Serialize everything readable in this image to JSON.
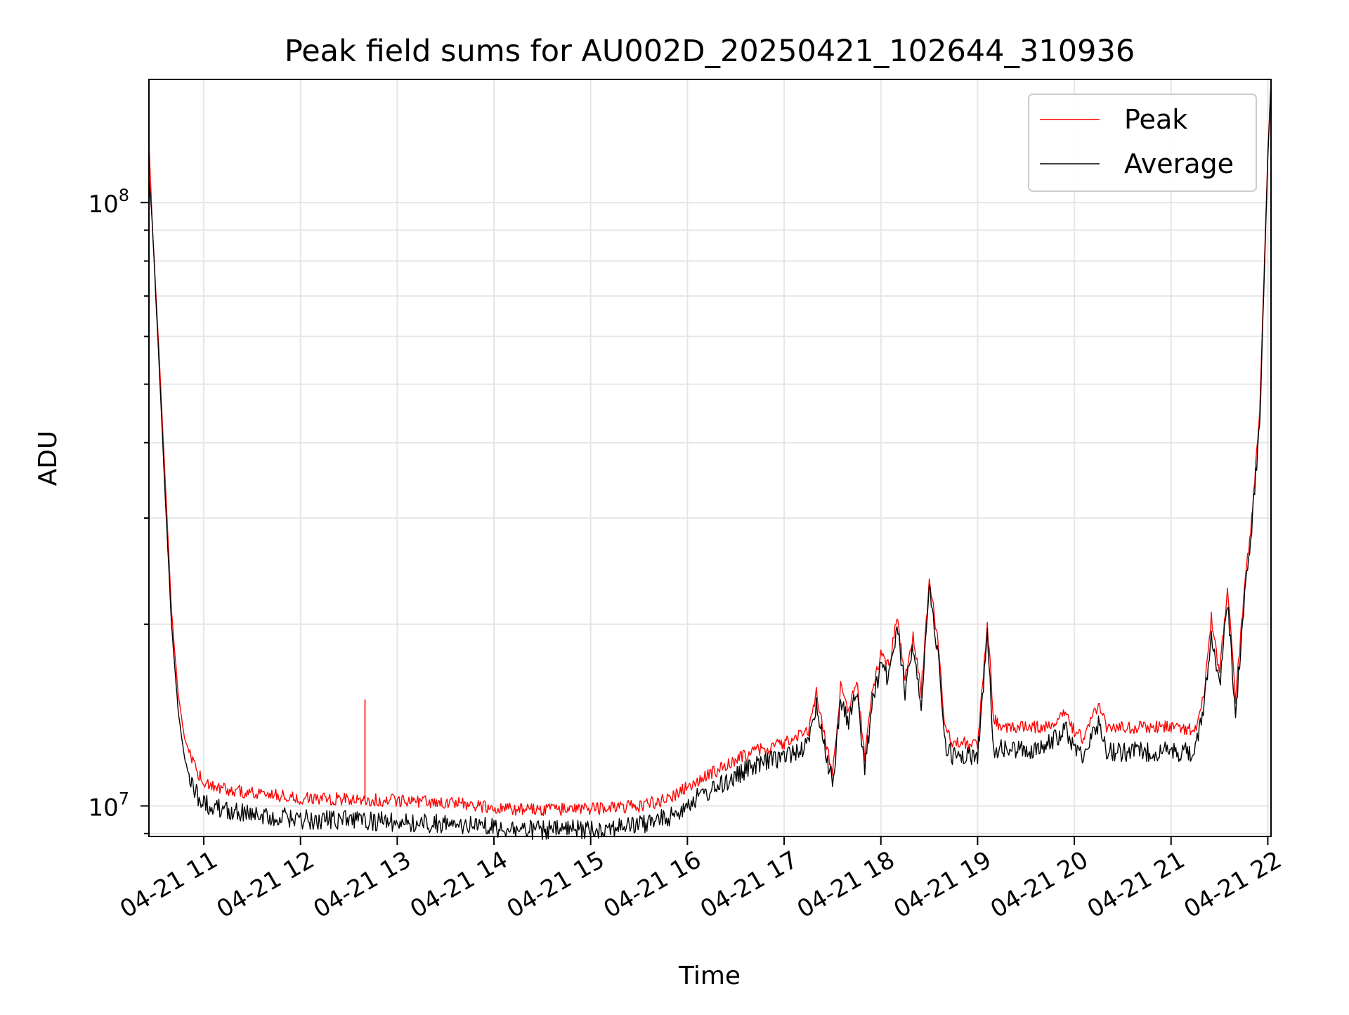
{
  "chart_data": {
    "type": "line",
    "title": "Peak field sums for AU002D_20250421_102644_310936",
    "xlabel": "Time",
    "ylabel": "ADU",
    "y_scale": "log",
    "xlim": [
      "2025-04-21 10:26",
      "2025-04-21 22:02"
    ],
    "ylim": [
      8900000,
      160000000
    ],
    "x_ticks": [
      "04-21 11",
      "04-21 12",
      "04-21 13",
      "04-21 14",
      "04-21 15",
      "04-21 16",
      "04-21 17",
      "04-21 18",
      "04-21 19",
      "04-21 20",
      "04-21 21",
      "04-21 22"
    ],
    "y_tick_labels": [
      {
        "value": 10000000,
        "base": "10",
        "exp": "7"
      },
      {
        "value": 100000000,
        "base": "10",
        "exp": "8"
      }
    ],
    "grid": true,
    "legend": {
      "position": "upper right"
    },
    "series": [
      {
        "name": "Peak",
        "color": "#ff0000",
        "x": [
          "2025-04-21 10:26",
          "2025-04-21 10:28",
          "2025-04-21 10:32",
          "2025-04-21 10:36",
          "2025-04-21 10:40",
          "2025-04-21 10:44",
          "2025-04-21 10:48",
          "2025-04-21 10:52",
          "2025-04-21 10:56",
          "2025-04-21 11:00",
          "2025-04-21 11:10",
          "2025-04-21 11:30",
          "2025-04-21 12:00",
          "2025-04-21 12:40",
          "2025-04-21 13:00",
          "2025-04-21 13:40",
          "2025-04-21 14:00",
          "2025-04-21 14:30",
          "2025-04-21 15:00",
          "2025-04-21 15:30",
          "2025-04-21 15:50",
          "2025-04-21 16:00",
          "2025-04-21 16:20",
          "2025-04-21 16:40",
          "2025-04-21 17:00",
          "2025-04-21 17:15",
          "2025-04-21 17:20",
          "2025-04-21 17:30",
          "2025-04-21 17:35",
          "2025-04-21 17:40",
          "2025-04-21 17:45",
          "2025-04-21 17:50",
          "2025-04-21 17:55",
          "2025-04-21 18:00",
          "2025-04-21 18:05",
          "2025-04-21 18:10",
          "2025-04-21 18:15",
          "2025-04-21 18:20",
          "2025-04-21 18:25",
          "2025-04-21 18:30",
          "2025-04-21 18:35",
          "2025-04-21 18:40",
          "2025-04-21 18:45",
          "2025-04-21 18:50",
          "2025-04-21 19:00",
          "2025-04-21 19:06",
          "2025-04-21 19:10",
          "2025-04-21 19:14",
          "2025-04-21 19:20",
          "2025-04-21 19:40",
          "2025-04-21 19:55",
          "2025-04-21 20:00",
          "2025-04-21 20:05",
          "2025-04-21 20:15",
          "2025-04-21 20:20",
          "2025-04-21 20:25",
          "2025-04-21 20:40",
          "2025-04-21 21:00",
          "2025-04-21 21:15",
          "2025-04-21 21:20",
          "2025-04-21 21:25",
          "2025-04-21 21:30",
          "2025-04-21 21:35",
          "2025-04-21 21:40",
          "2025-04-21 21:45",
          "2025-04-21 21:50",
          "2025-04-21 21:55",
          "2025-04-21 22:00",
          "2025-04-21 22:02"
        ],
        "y": [
          125000000,
          93000000,
          58000000,
          35000000,
          21000000,
          15500000,
          13000000,
          12000000,
          11400000,
          11000000,
          10700000,
          10500000,
          10300000,
          10250000,
          10200000,
          10100000,
          9900000,
          9850000,
          9900000,
          10000000,
          10300000,
          10800000,
          11500000,
          12300000,
          12700000,
          13300000,
          15500000,
          11200000,
          15700000,
          14300000,
          16200000,
          12100000,
          15600000,
          17800000,
          17000000,
          20500000,
          16200000,
          19200000,
          15400000,
          23800000,
          19000000,
          13300000,
          12700000,
          12700000,
          12700000,
          20000000,
          14000000,
          13500000,
          13500000,
          13500000,
          14200000,
          13300000,
          13000000,
          14600000,
          13500000,
          13500000,
          13500000,
          13500000,
          13400000,
          15000000,
          20500000,
          16500000,
          23000000,
          15000000,
          22000000,
          30000000,
          45000000,
          120000000,
          160000000
        ]
      },
      {
        "name": "Average",
        "color": "#000000",
        "x": [
          "2025-04-21 10:26",
          "2025-04-21 10:28",
          "2025-04-21 10:32",
          "2025-04-21 10:36",
          "2025-04-21 10:40",
          "2025-04-21 10:44",
          "2025-04-21 10:48",
          "2025-04-21 10:52",
          "2025-04-21 10:56",
          "2025-04-21 11:00",
          "2025-04-21 11:10",
          "2025-04-21 11:30",
          "2025-04-21 12:00",
          "2025-04-21 12:40",
          "2025-04-21 13:00",
          "2025-04-21 13:40",
          "2025-04-21 14:00",
          "2025-04-21 14:30",
          "2025-04-21 15:00",
          "2025-04-21 15:30",
          "2025-04-21 15:50",
          "2025-04-21 16:00",
          "2025-04-21 16:20",
          "2025-04-21 16:40",
          "2025-04-21 17:00",
          "2025-04-21 17:15",
          "2025-04-21 17:20",
          "2025-04-21 17:30",
          "2025-04-21 17:35",
          "2025-04-21 17:40",
          "2025-04-21 17:45",
          "2025-04-21 17:50",
          "2025-04-21 17:55",
          "2025-04-21 18:00",
          "2025-04-21 18:05",
          "2025-04-21 18:10",
          "2025-04-21 18:15",
          "2025-04-21 18:20",
          "2025-04-21 18:25",
          "2025-04-21 18:30",
          "2025-04-21 18:35",
          "2025-04-21 18:40",
          "2025-04-21 18:45",
          "2025-04-21 18:50",
          "2025-04-21 19:00",
          "2025-04-21 19:06",
          "2025-04-21 19:10",
          "2025-04-21 19:14",
          "2025-04-21 19:20",
          "2025-04-21 19:40",
          "2025-04-21 19:55",
          "2025-04-21 20:00",
          "2025-04-21 20:05",
          "2025-04-21 20:15",
          "2025-04-21 20:20",
          "2025-04-21 20:25",
          "2025-04-21 20:40",
          "2025-04-21 21:00",
          "2025-04-21 21:15",
          "2025-04-21 21:20",
          "2025-04-21 21:25",
          "2025-04-21 21:30",
          "2025-04-21 21:35",
          "2025-04-21 21:40",
          "2025-04-21 21:45",
          "2025-04-21 21:50",
          "2025-04-21 21:55",
          "2025-04-21 22:00",
          "2025-04-21 22:02"
        ],
        "y": [
          110000000,
          93000000,
          56000000,
          33000000,
          20000000,
          14500000,
          12000000,
          11000000,
          10400000,
          10100000,
          9900000,
          9700000,
          9500000,
          9450000,
          9400000,
          9300000,
          9200000,
          9100000,
          9150000,
          9300000,
          9600000,
          10100000,
          10800000,
          11600000,
          12100000,
          12600000,
          14800000,
          10800000,
          15000000,
          13800000,
          15500000,
          11500000,
          15000000,
          17000000,
          16200000,
          19800000,
          15500000,
          18500000,
          14800000,
          22800000,
          18300000,
          12600000,
          12100000,
          12100000,
          12100000,
          19000000,
          12500000,
          12400000,
          12400000,
          12400000,
          13400000,
          12400000,
          12200000,
          13700000,
          12400000,
          12300000,
          12300000,
          12300000,
          12300000,
          14300000,
          19500000,
          15700000,
          22000000,
          14200000,
          21000000,
          29000000,
          43000000,
          118000000,
          158000000
        ]
      }
    ],
    "annotations": [
      {
        "type": "spike",
        "series": "Peak",
        "x": "2025-04-21 12:40",
        "y": 15000000
      }
    ]
  }
}
